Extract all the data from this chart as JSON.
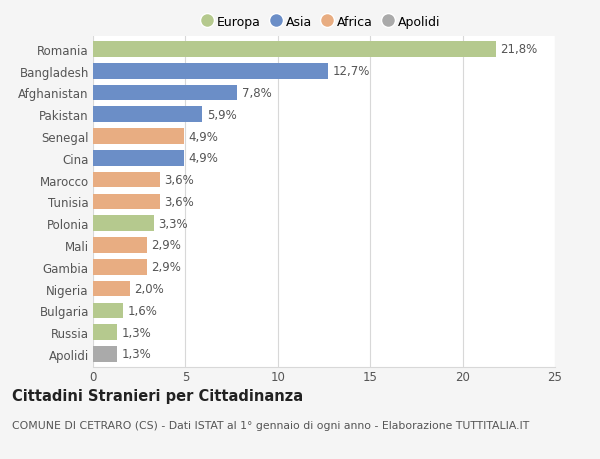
{
  "categories": [
    "Romania",
    "Bangladesh",
    "Afghanistan",
    "Pakistan",
    "Senegal",
    "Cina",
    "Marocco",
    "Tunisia",
    "Polonia",
    "Mali",
    "Gambia",
    "Nigeria",
    "Bulgaria",
    "Russia",
    "Apolidi"
  ],
  "values": [
    21.8,
    12.7,
    7.8,
    5.9,
    4.9,
    4.9,
    3.6,
    3.6,
    3.3,
    2.9,
    2.9,
    2.0,
    1.6,
    1.3,
    1.3
  ],
  "labels": [
    "21,8%",
    "12,7%",
    "7,8%",
    "5,9%",
    "4,9%",
    "4,9%",
    "3,6%",
    "3,6%",
    "3,3%",
    "2,9%",
    "2,9%",
    "2,0%",
    "1,6%",
    "1,3%",
    "1,3%"
  ],
  "colors": [
    "#b5c98e",
    "#6b8ec7",
    "#6b8ec7",
    "#6b8ec7",
    "#e8ad82",
    "#6b8ec7",
    "#e8ad82",
    "#e8ad82",
    "#b5c98e",
    "#e8ad82",
    "#e8ad82",
    "#e8ad82",
    "#b5c98e",
    "#b5c98e",
    "#aaaaaa"
  ],
  "legend_labels": [
    "Europa",
    "Asia",
    "Africa",
    "Apolidi"
  ],
  "legend_colors": [
    "#b5c98e",
    "#6b8ec7",
    "#e8ad82",
    "#aaaaaa"
  ],
  "title": "Cittadini Stranieri per Cittadinanza",
  "subtitle": "COMUNE DI CETRARO (CS) - Dati ISTAT al 1° gennaio di ogni anno - Elaborazione TUTTITALIA.IT",
  "xlim": [
    0,
    25
  ],
  "xticks": [
    0,
    5,
    10,
    15,
    20,
    25
  ],
  "background_color": "#f5f5f5",
  "bar_background": "#ffffff",
  "grid_color": "#d8d8d8",
  "label_fontsize": 8.5,
  "tick_fontsize": 8.5,
  "title_fontsize": 10.5,
  "subtitle_fontsize": 7.8
}
